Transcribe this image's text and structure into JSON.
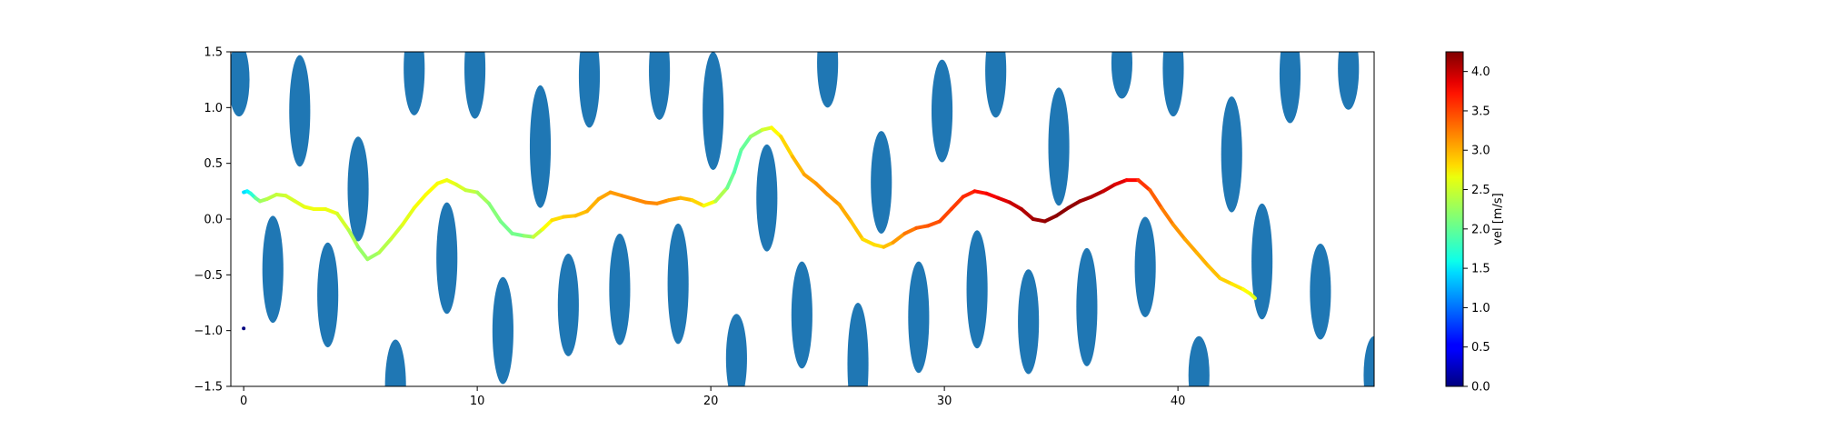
{
  "chart_data": {
    "type": "scatter",
    "title": "",
    "xlabel": "",
    "ylabel": "",
    "xlim": [
      -0.55,
      48.4
    ],
    "ylim": [
      -1.5,
      1.5
    ],
    "x_ticks": [
      0,
      10,
      20,
      30,
      40
    ],
    "y_ticks": [
      -1.5,
      -1.0,
      -0.5,
      0.0,
      0.5,
      1.0,
      1.5
    ],
    "x_tick_labels": [
      "0",
      "10",
      "20",
      "30",
      "40"
    ],
    "y_tick_labels": [
      "−1.5",
      "−1.0",
      "−0.5",
      "0.0",
      "0.5",
      "1.0",
      "1.5"
    ],
    "grid": false,
    "obstacle_color": "#1f77b4",
    "obstacles": [
      {
        "x": -0.2,
        "y": 1.25,
        "rx": 0.45,
        "ry": 0.33
      },
      {
        "x": 2.4,
        "y": 0.97,
        "rx": 0.45,
        "ry": 0.5
      },
      {
        "x": 4.9,
        "y": 0.27,
        "rx": 0.45,
        "ry": 0.47
      },
      {
        "x": 1.25,
        "y": -0.45,
        "rx": 0.45,
        "ry": 0.48
      },
      {
        "x": 3.6,
        "y": -0.68,
        "rx": 0.45,
        "ry": 0.47
      },
      {
        "x": 6.5,
        "y": -1.5,
        "rx": 0.45,
        "ry": 0.42
      },
      {
        "x": 7.3,
        "y": 1.35,
        "rx": 0.45,
        "ry": 0.42
      },
      {
        "x": 8.7,
        "y": -0.35,
        "rx": 0.45,
        "ry": 0.5
      },
      {
        "x": 9.9,
        "y": 1.35,
        "rx": 0.45,
        "ry": 0.45
      },
      {
        "x": 11.1,
        "y": -1.0,
        "rx": 0.45,
        "ry": 0.48
      },
      {
        "x": 12.7,
        "y": 0.65,
        "rx": 0.45,
        "ry": 0.55
      },
      {
        "x": 13.9,
        "y": -0.77,
        "rx": 0.45,
        "ry": 0.46
      },
      {
        "x": 14.8,
        "y": 1.28,
        "rx": 0.45,
        "ry": 0.46
      },
      {
        "x": 16.1,
        "y": -0.63,
        "rx": 0.45,
        "ry": 0.5
      },
      {
        "x": 17.8,
        "y": 1.33,
        "rx": 0.45,
        "ry": 0.44
      },
      {
        "x": 18.6,
        "y": -0.58,
        "rx": 0.45,
        "ry": 0.54
      },
      {
        "x": 20.1,
        "y": 0.97,
        "rx": 0.45,
        "ry": 0.53
      },
      {
        "x": 21.1,
        "y": -1.25,
        "rx": 0.45,
        "ry": 0.4
      },
      {
        "x": 22.4,
        "y": 0.19,
        "rx": 0.45,
        "ry": 0.48
      },
      {
        "x": 23.9,
        "y": -0.86,
        "rx": 0.45,
        "ry": 0.48
      },
      {
        "x": 25.0,
        "y": 1.4,
        "rx": 0.45,
        "ry": 0.4
      },
      {
        "x": 26.3,
        "y": -1.3,
        "rx": 0.45,
        "ry": 0.55
      },
      {
        "x": 27.3,
        "y": 0.33,
        "rx": 0.45,
        "ry": 0.46
      },
      {
        "x": 28.9,
        "y": -0.88,
        "rx": 0.45,
        "ry": 0.5
      },
      {
        "x": 29.9,
        "y": 0.97,
        "rx": 0.45,
        "ry": 0.46
      },
      {
        "x": 31.4,
        "y": -0.63,
        "rx": 0.45,
        "ry": 0.53
      },
      {
        "x": 32.2,
        "y": 1.33,
        "rx": 0.45,
        "ry": 0.42
      },
      {
        "x": 33.6,
        "y": -0.92,
        "rx": 0.45,
        "ry": 0.47
      },
      {
        "x": 34.9,
        "y": 0.65,
        "rx": 0.45,
        "ry": 0.53
      },
      {
        "x": 36.1,
        "y": -0.79,
        "rx": 0.45,
        "ry": 0.53
      },
      {
        "x": 37.6,
        "y": 1.4,
        "rx": 0.45,
        "ry": 0.32
      },
      {
        "x": 38.6,
        "y": -0.43,
        "rx": 0.45,
        "ry": 0.45
      },
      {
        "x": 39.8,
        "y": 1.35,
        "rx": 0.45,
        "ry": 0.43
      },
      {
        "x": 40.9,
        "y": -1.4,
        "rx": 0.45,
        "ry": 0.35
      },
      {
        "x": 42.3,
        "y": 0.58,
        "rx": 0.45,
        "ry": 0.52
      },
      {
        "x": 43.6,
        "y": -0.38,
        "rx": 0.45,
        "ry": 0.52
      },
      {
        "x": 44.8,
        "y": 1.3,
        "rx": 0.45,
        "ry": 0.44
      },
      {
        "x": 46.1,
        "y": -0.65,
        "rx": 0.45,
        "ry": 0.43
      },
      {
        "x": 47.3,
        "y": 1.35,
        "rx": 0.45,
        "ry": 0.37
      },
      {
        "x": 48.4,
        "y": -1.4,
        "rx": 0.45,
        "ry": 0.35
      }
    ],
    "trajectory": {
      "x": [
        0.0,
        0.15,
        0.3,
        0.5,
        0.7,
        1.0,
        1.4,
        1.8,
        2.2,
        2.6,
        3.0,
        3.5,
        4.0,
        4.5,
        4.9,
        5.3,
        5.8,
        6.3,
        6.8,
        7.3,
        7.8,
        8.3,
        8.7,
        9.1,
        9.5,
        10.0,
        10.5,
        11.0,
        11.5,
        12.0,
        12.4,
        12.8,
        13.2,
        13.7,
        14.2,
        14.7,
        15.2,
        15.7,
        16.2,
        16.7,
        17.2,
        17.7,
        18.2,
        18.7,
        19.2,
        19.7,
        20.2,
        20.7,
        21.0,
        21.3,
        21.7,
        22.2,
        22.6,
        23.0,
        23.5,
        24.0,
        24.5,
        25.0,
        25.5,
        26.0,
        26.5,
        27.0,
        27.4,
        27.8,
        28.3,
        28.8,
        29.3,
        29.8,
        30.3,
        30.8,
        31.3,
        31.8,
        32.3,
        32.8,
        33.3,
        33.8,
        34.3,
        34.8,
        35.3,
        35.8,
        36.3,
        36.8,
        37.3,
        37.8,
        38.3,
        38.8,
        39.3,
        39.8,
        40.3,
        40.8,
        41.3,
        41.8,
        42.3,
        42.8,
        43.1,
        43.3
      ],
      "y": [
        0.24,
        0.25,
        0.23,
        0.19,
        0.16,
        0.18,
        0.22,
        0.21,
        0.16,
        0.11,
        0.09,
        0.09,
        0.05,
        -0.1,
        -0.25,
        -0.36,
        -0.3,
        -0.18,
        -0.05,
        0.1,
        0.22,
        0.32,
        0.35,
        0.31,
        0.26,
        0.24,
        0.14,
        -0.02,
        -0.13,
        -0.15,
        -0.16,
        -0.09,
        -0.01,
        0.02,
        0.03,
        0.07,
        0.18,
        0.24,
        0.21,
        0.18,
        0.15,
        0.14,
        0.17,
        0.19,
        0.17,
        0.12,
        0.16,
        0.28,
        0.42,
        0.62,
        0.74,
        0.8,
        0.82,
        0.74,
        0.56,
        0.4,
        0.32,
        0.22,
        0.13,
        -0.02,
        -0.18,
        -0.23,
        -0.25,
        -0.21,
        -0.13,
        -0.08,
        -0.06,
        -0.02,
        0.09,
        0.2,
        0.25,
        0.23,
        0.19,
        0.15,
        0.09,
        0.0,
        -0.02,
        0.03,
        0.1,
        0.16,
        0.2,
        0.25,
        0.31,
        0.35,
        0.35,
        0.26,
        0.1,
        -0.05,
        -0.18,
        -0.3,
        -0.42,
        -0.53,
        -0.58,
        -0.63,
        -0.67,
        -0.71
      ],
      "vel": [
        1.4,
        1.5,
        1.65,
        1.9,
        2.2,
        2.35,
        2.4,
        2.45,
        2.5,
        2.55,
        2.6,
        2.6,
        2.55,
        2.4,
        2.25,
        2.2,
        2.3,
        2.4,
        2.5,
        2.6,
        2.65,
        2.65,
        2.6,
        2.55,
        2.45,
        2.35,
        2.2,
        2.1,
        2.05,
        2.1,
        2.3,
        2.55,
        2.75,
        2.85,
        2.9,
        2.95,
        3.0,
        3.05,
        3.1,
        3.15,
        3.15,
        3.15,
        3.1,
        3.0,
        2.9,
        2.75,
        2.5,
        2.15,
        1.95,
        1.95,
        2.1,
        2.35,
        2.6,
        2.75,
        2.9,
        3.0,
        3.1,
        3.1,
        3.05,
        2.95,
        2.85,
        2.75,
        2.85,
        3.0,
        3.15,
        3.3,
        3.35,
        3.4,
        3.45,
        3.5,
        3.6,
        3.7,
        3.8,
        3.9,
        4.0,
        4.1,
        4.15,
        4.2,
        4.2,
        4.15,
        4.1,
        4.0,
        3.9,
        3.8,
        3.6,
        3.4,
        3.25,
        3.15,
        3.05,
        3.0,
        2.95,
        2.9,
        2.8,
        2.7,
        2.6,
        2.5
      ]
    },
    "extra_points": [
      {
        "x": 0.0,
        "y": -0.98,
        "vel": 0.0
      }
    ],
    "colorbar": {
      "label": "vel [m/s]",
      "colormap": "jet",
      "min": 0.0,
      "max": 4.25,
      "ticks": [
        0.0,
        0.5,
        1.0,
        1.5,
        2.0,
        2.5,
        3.0,
        3.5,
        4.0
      ],
      "tick_labels": [
        "0.0",
        "0.5",
        "1.0",
        "1.5",
        "2.0",
        "2.5",
        "3.0",
        "3.5",
        "4.0"
      ]
    }
  }
}
